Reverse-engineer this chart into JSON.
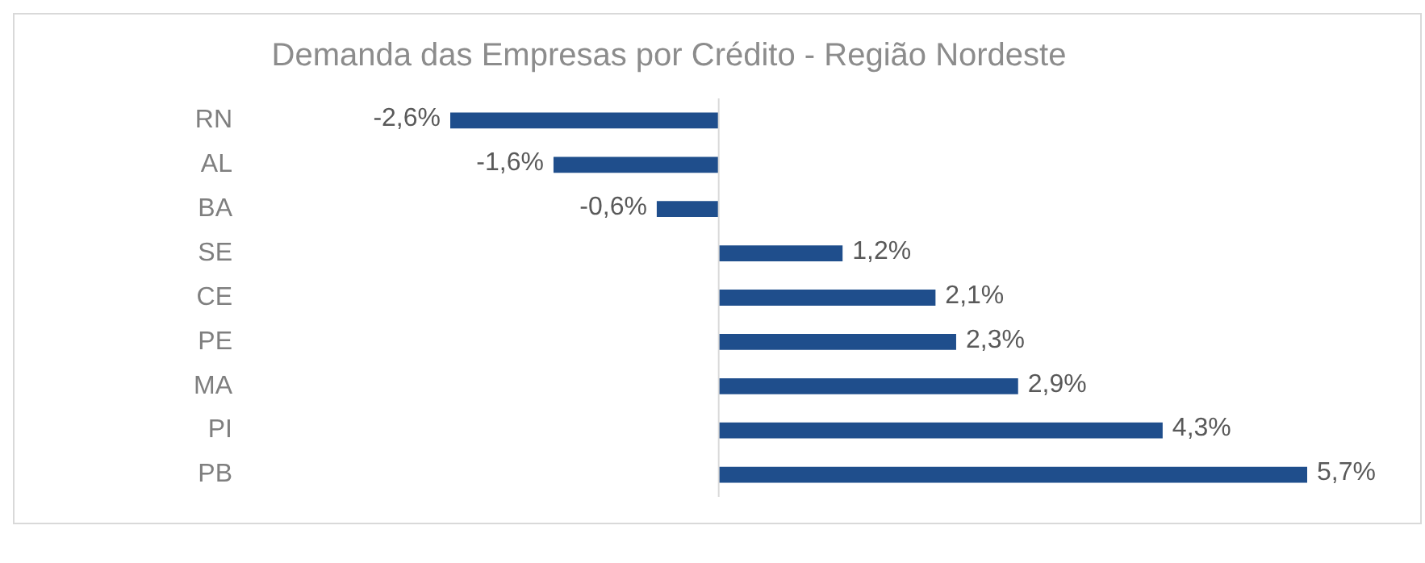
{
  "chart_data": {
    "type": "bar",
    "orientation": "horizontal",
    "title": "Demanda das Empresas por Crédito - Região Nordeste",
    "categories": [
      "RN",
      "AL",
      "BA",
      "SE",
      "CE",
      "PE",
      "MA",
      "PI",
      "PB"
    ],
    "values": [
      -2.6,
      -1.6,
      -0.6,
      1.2,
      2.1,
      2.3,
      2.9,
      4.3,
      5.7
    ],
    "value_labels": [
      "-2,6%",
      "-1,6%",
      "-0,6%",
      "1,2%",
      "2,1%",
      "2,3%",
      "2,9%",
      "4,3%",
      "5,7%"
    ],
    "color": "#1f4e8c",
    "legend": false
  }
}
